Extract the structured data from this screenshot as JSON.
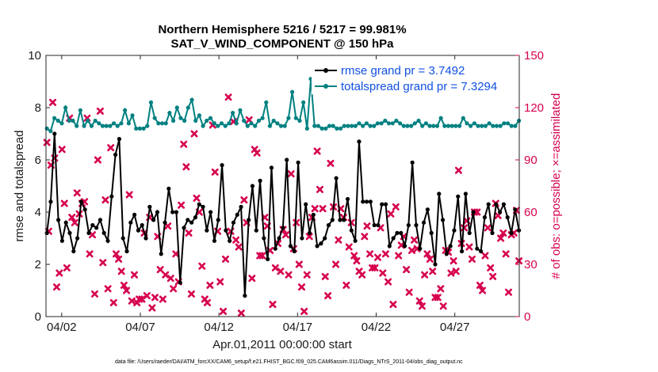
{
  "chart_data": {
    "type": "line",
    "title_line1": "Northern Hemisphere 5216 / 5217 = 99.981%",
    "title_line2": "SAT_V_WIND_COMPONENT @ 150 hPa",
    "xlabel": "Apr.01,2011 00:00:00 start",
    "ylabel": "rmse and totalspread",
    "ylabel_right": "# of obs: o=possible; ×=assimilated",
    "footer": "data file: /Users/raeder/DAI/ATM_forcXX/CAM6_setup/f.e21.FHIST_BGC.f09_025.CAM6assim.011/Diags_NTrS_2011-04/obs_diag_output.nc",
    "x_range_days": [
      0,
      30.1
    ],
    "ylim": [
      0,
      10
    ],
    "ylim_right": [
      0,
      150
    ],
    "x_tick_labels": [
      "04/02",
      "04/07",
      "04/12",
      "04/17",
      "04/22",
      "04/27"
    ],
    "x_tick_days": [
      1,
      6,
      11,
      16,
      21,
      26
    ],
    "y_ticks": [
      "0",
      "2",
      "4",
      "6",
      "8",
      "10"
    ],
    "y_ticks_right": [
      "0",
      "30",
      "60",
      "90",
      "120",
      "150"
    ],
    "grid": false,
    "legend_position": "top-right",
    "series": [
      {
        "name": "rmse grand pr = 3.7492",
        "axis": "left",
        "color": "#000000",
        "marker": "circle",
        "values": [
          3.2,
          4.4,
          7.0,
          3.7,
          2.9,
          3.6,
          3.2,
          2.5,
          3.0,
          4.4,
          4.1,
          3.2,
          3.5,
          3.4,
          3.7,
          3.2,
          2.9,
          4.6,
          6.2,
          6.8,
          3.0,
          2.5,
          3.6,
          3.9,
          3.3,
          3.5,
          3.0,
          4.2,
          3.7,
          4.0,
          2.4,
          3.6,
          4.9,
          4.0,
          4.0,
          1.3,
          3.4,
          3.7,
          3.6,
          3.8,
          4.3,
          4.2,
          3.3,
          4.0,
          2.9,
          3.7,
          5.8,
          3.3,
          2.9,
          3.6,
          3.9,
          4.2,
          0.8,
          3.7,
          5.0,
          3.3,
          5.2,
          3.0,
          2.2,
          5.7,
          2.6,
          3.0,
          3.4,
          6.0,
          2.7,
          2.5,
          5.9,
          3.0,
          4.3,
          3.2,
          3.9,
          2.7,
          2.8,
          3.0,
          3.5,
          3.7,
          5.3,
          3.7,
          3.7,
          4.5,
          3.3,
          2.9,
          6.7,
          4.4,
          4.4,
          4.4,
          3.5,
          3.5,
          4.3,
          4.3,
          2.7,
          3.0,
          3.2,
          3.2,
          2.7,
          3.5,
          5.9,
          3.5,
          2.6,
          3.6,
          4.1,
          3.2,
          2.0,
          4.7,
          3.7,
          2.4,
          2.7,
          3.3,
          4.6,
          2.5,
          4.7,
          3.2,
          4.0,
          2.6,
          2.5,
          3.8,
          4.3,
          3.2,
          4.3,
          4.0,
          4.3,
          3.8,
          3.2,
          4.1,
          3.3
        ]
      },
      {
        "name": "totalspread grand pr = 7.3294",
        "axis": "left",
        "color": "#008080",
        "marker": "circle",
        "values": [
          7.2,
          7.1,
          7.6,
          7.5,
          7.4,
          8.0,
          7.5,
          7.5,
          7.3,
          7.9,
          7.3,
          7.5,
          7.3,
          7.5,
          7.4,
          7.3,
          7.3,
          7.3,
          7.4,
          7.3,
          7.4,
          7.9,
          7.4,
          7.7,
          7.2,
          7.2,
          7.2,
          7.3,
          8.2,
          7.6,
          7.4,
          7.4,
          7.4,
          7.8,
          7.5,
          8.0,
          7.6,
          7.5,
          8.0,
          8.3,
          7.5,
          7.7,
          7.3,
          7.5,
          7.6,
          7.4,
          7.3,
          7.4,
          7.3,
          7.4,
          7.8,
          7.4,
          7.9,
          7.5,
          7.3,
          7.4,
          7.3,
          7.5,
          7.6,
          8.2,
          7.3,
          7.5,
          7.4,
          7.3,
          7.3,
          7.6,
          8.6,
          7.6,
          7.5,
          8.2,
          7.2,
          9.1,
          7.3,
          7.3,
          7.2,
          7.2,
          7.3,
          7.3,
          7.2,
          7.2,
          7.3,
          7.3,
          7.3,
          7.3,
          7.4,
          7.3,
          7.4,
          7.3,
          7.3,
          7.4,
          7.4,
          7.5,
          7.4,
          7.4,
          7.5,
          7.4,
          7.3,
          7.3,
          7.3,
          7.4,
          7.5,
          7.3,
          7.4,
          7.3,
          7.3,
          7.3,
          7.6,
          7.3,
          7.3,
          7.3,
          7.3,
          7.3,
          7.6,
          7.4,
          7.3,
          7.4,
          7.3,
          7.3,
          7.3,
          7.4,
          7.3,
          7.3,
          7.3,
          7.4,
          7.4,
          7.3,
          7.3,
          7.5
        ]
      }
    ],
    "obs_markers": {
      "name": "assimilated",
      "axis": "right",
      "color": "#d6004f",
      "marker": "x",
      "points": [
        [
          0.06,
          100
        ],
        [
          0.17,
          49
        ],
        [
          0.32,
          87
        ],
        [
          0.43,
          123
        ],
        [
          0.55,
          91
        ],
        [
          0.68,
          17
        ],
        [
          0.85,
          25
        ],
        [
          1.02,
          96
        ],
        [
          1.17,
          65
        ],
        [
          1.33,
          28
        ],
        [
          1.5,
          114
        ],
        [
          1.65,
          57
        ],
        [
          1.83,
          54
        ],
        [
          1.98,
          71
        ],
        [
          2.12,
          59
        ],
        [
          2.3,
          65
        ],
        [
          2.45,
          66
        ],
        [
          2.62,
          114
        ],
        [
          2.78,
          36
        ],
        [
          2.95,
          47
        ],
        [
          3.1,
          13
        ],
        [
          3.3,
          90
        ],
        [
          3.45,
          118
        ],
        [
          3.62,
          31
        ],
        [
          3.78,
          67
        ],
        [
          3.94,
          16
        ],
        [
          4.12,
          97
        ],
        [
          4.3,
          8
        ],
        [
          4.46,
          36
        ],
        [
          4.62,
          33
        ],
        [
          4.8,
          26
        ],
        [
          4.96,
          18
        ],
        [
          5.12,
          15
        ],
        [
          5.3,
          70
        ],
        [
          5.46,
          9
        ],
        [
          5.62,
          24
        ],
        [
          5.78,
          8
        ],
        [
          5.93,
          10
        ],
        [
          6.1,
          10
        ],
        [
          6.25,
          48
        ],
        [
          6.42,
          12
        ],
        [
          6.59,
          57
        ],
        [
          6.75,
          5
        ],
        [
          6.93,
          11
        ],
        [
          7.1,
          46
        ],
        [
          7.27,
          27
        ],
        [
          7.43,
          10
        ],
        [
          7.6,
          24
        ],
        [
          7.75,
          52
        ],
        [
          7.93,
          22
        ],
        [
          8.1,
          16
        ],
        [
          8.26,
          36
        ],
        [
          8.43,
          20
        ],
        [
          8.6,
          64
        ],
        [
          8.76,
          99
        ],
        [
          8.92,
          86
        ],
        [
          9.08,
          48
        ],
        [
          9.25,
          13
        ],
        [
          9.43,
          105
        ],
        [
          9.58,
          68
        ],
        [
          9.75,
          60
        ],
        [
          9.92,
          29
        ],
        [
          10.1,
          10
        ],
        [
          10.26,
          8
        ],
        [
          10.43,
          18
        ],
        [
          10.6,
          110
        ],
        [
          10.75,
          83
        ],
        [
          10.92,
          49
        ],
        [
          11.08,
          20
        ],
        [
          11.27,
          3
        ],
        [
          11.42,
          33
        ],
        [
          11.6,
          126
        ],
        [
          11.75,
          49
        ],
        [
          11.92,
          112
        ],
        [
          12.08,
          44
        ],
        [
          12.26,
          40
        ],
        [
          12.42,
          2
        ],
        [
          12.6,
          67
        ],
        [
          12.76,
          54
        ],
        [
          12.92,
          113
        ],
        [
          13.1,
          22
        ],
        [
          13.27,
          96
        ],
        [
          13.42,
          94
        ],
        [
          13.6,
          35
        ],
        [
          13.76,
          35
        ],
        [
          13.92,
          57
        ],
        [
          14.08,
          52
        ],
        [
          14.25,
          38
        ],
        [
          14.42,
          7
        ],
        [
          14.59,
          28
        ],
        [
          14.75,
          42
        ],
        [
          14.92,
          26
        ],
        [
          15.08,
          50
        ],
        [
          15.25,
          47
        ],
        [
          15.43,
          24
        ],
        [
          15.59,
          82
        ],
        [
          15.75,
          39
        ],
        [
          15.92,
          54
        ],
        [
          16.1,
          30
        ],
        [
          16.26,
          17
        ],
        [
          16.42,
          3
        ],
        [
          16.6,
          24
        ],
        [
          16.75,
          46
        ],
        [
          16.92,
          57
        ],
        [
          17.1,
          62
        ],
        [
          17.25,
          95
        ],
        [
          17.42,
          73
        ],
        [
          17.6,
          62
        ],
        [
          17.76,
          23
        ],
        [
          17.93,
          12
        ],
        [
          18.1,
          88
        ],
        [
          18.28,
          63
        ],
        [
          18.43,
          30
        ],
        [
          18.6,
          44
        ],
        [
          18.75,
          62
        ],
        [
          18.93,
          57
        ],
        [
          19.1,
          18
        ],
        [
          19.27,
          40
        ],
        [
          19.42,
          54
        ],
        [
          19.6,
          35
        ],
        [
          19.76,
          32
        ],
        [
          19.92,
          26
        ],
        [
          20.1,
          24
        ],
        [
          20.26,
          46
        ],
        [
          20.42,
          52
        ],
        [
          20.6,
          36
        ],
        [
          20.75,
          28
        ],
        [
          20.92,
          28
        ],
        [
          21.1,
          34
        ],
        [
          21.28,
          51
        ],
        [
          21.42,
          25
        ],
        [
          21.6,
          36
        ],
        [
          21.76,
          20
        ],
        [
          21.93,
          59
        ],
        [
          22.08,
          7
        ],
        [
          22.25,
          63
        ],
        [
          22.42,
          35
        ],
        [
          22.6,
          41
        ],
        [
          22.75,
          46
        ],
        [
          22.92,
          27
        ],
        [
          23.1,
          14
        ],
        [
          23.27,
          38
        ],
        [
          23.42,
          44
        ],
        [
          23.6,
          39
        ],
        [
          23.76,
          9
        ],
        [
          23.92,
          6
        ],
        [
          24.08,
          24
        ],
        [
          24.25,
          36
        ],
        [
          24.42,
          33
        ],
        [
          24.59,
          26
        ],
        [
          24.75,
          11
        ],
        [
          24.92,
          11
        ],
        [
          25.1,
          16
        ],
        [
          25.27,
          6
        ],
        [
          25.42,
          38
        ],
        [
          25.59,
          37
        ],
        [
          25.76,
          25
        ],
        [
          25.92,
          32
        ],
        [
          26.08,
          26
        ],
        [
          26.24,
          84
        ],
        [
          26.42,
          42
        ],
        [
          26.6,
          51
        ],
        [
          26.76,
          55
        ],
        [
          26.92,
          40
        ],
        [
          27.1,
          33
        ],
        [
          27.25,
          60
        ],
        [
          27.42,
          60
        ],
        [
          27.6,
          18
        ],
        [
          27.76,
          15
        ],
        [
          27.93,
          35
        ],
        [
          28.1,
          51
        ],
        [
          28.27,
          28
        ],
        [
          28.42,
          23
        ],
        [
          28.6,
          65
        ],
        [
          28.75,
          58
        ],
        [
          28.92,
          45
        ],
        [
          29.08,
          48
        ],
        [
          29.25,
          36
        ],
        [
          29.42,
          14
        ],
        [
          29.6,
          47
        ],
        [
          29.76,
          48
        ],
        [
          29.92,
          61
        ],
        [
          30.08,
          32
        ]
      ]
    }
  }
}
